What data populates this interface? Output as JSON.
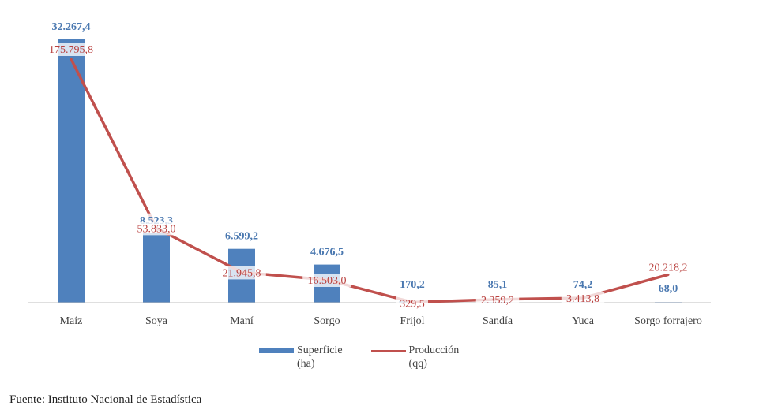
{
  "chart_data": {
    "type": "bar",
    "categories": [
      "Maíz",
      "Soya",
      "Maní",
      "Sorgo",
      "Frijol",
      "Sandía",
      "Yuca",
      "Sorgo forrajero"
    ],
    "series": [
      {
        "name": "Superficie (ha)",
        "type": "bar",
        "color": "#4f81bd",
        "values": [
          32267.4,
          8523.3,
          6599.2,
          4676.5,
          170.2,
          85.1,
          74.2,
          68.0
        ],
        "labels": [
          "32.267,4",
          "8.523,3",
          "6.599,2",
          "4.676,5",
          "170,2",
          "85,1",
          "74,2",
          "68,0"
        ]
      },
      {
        "name": "Producción (qq)",
        "type": "line",
        "color": "#c0504d",
        "values": [
          175795.8,
          53833.0,
          21945.8,
          16503.0,
          329.5,
          2359.2,
          3413.8,
          20218.2
        ],
        "labels": [
          "175.795,8",
          "53.833,0",
          "21.945,8",
          "16.503,0",
          "329,5",
          "2.359,2",
          "3.413,8",
          "20.218,2"
        ]
      }
    ],
    "legend": [
      {
        "line1": "Superficie",
        "line2": "(ha)"
      },
      {
        "line1": "Producción",
        "line2": "(qq)"
      }
    ],
    "legend_position": "bottom",
    "grid": false,
    "source": "Fuente: Instituto Nacional de Estadística"
  }
}
